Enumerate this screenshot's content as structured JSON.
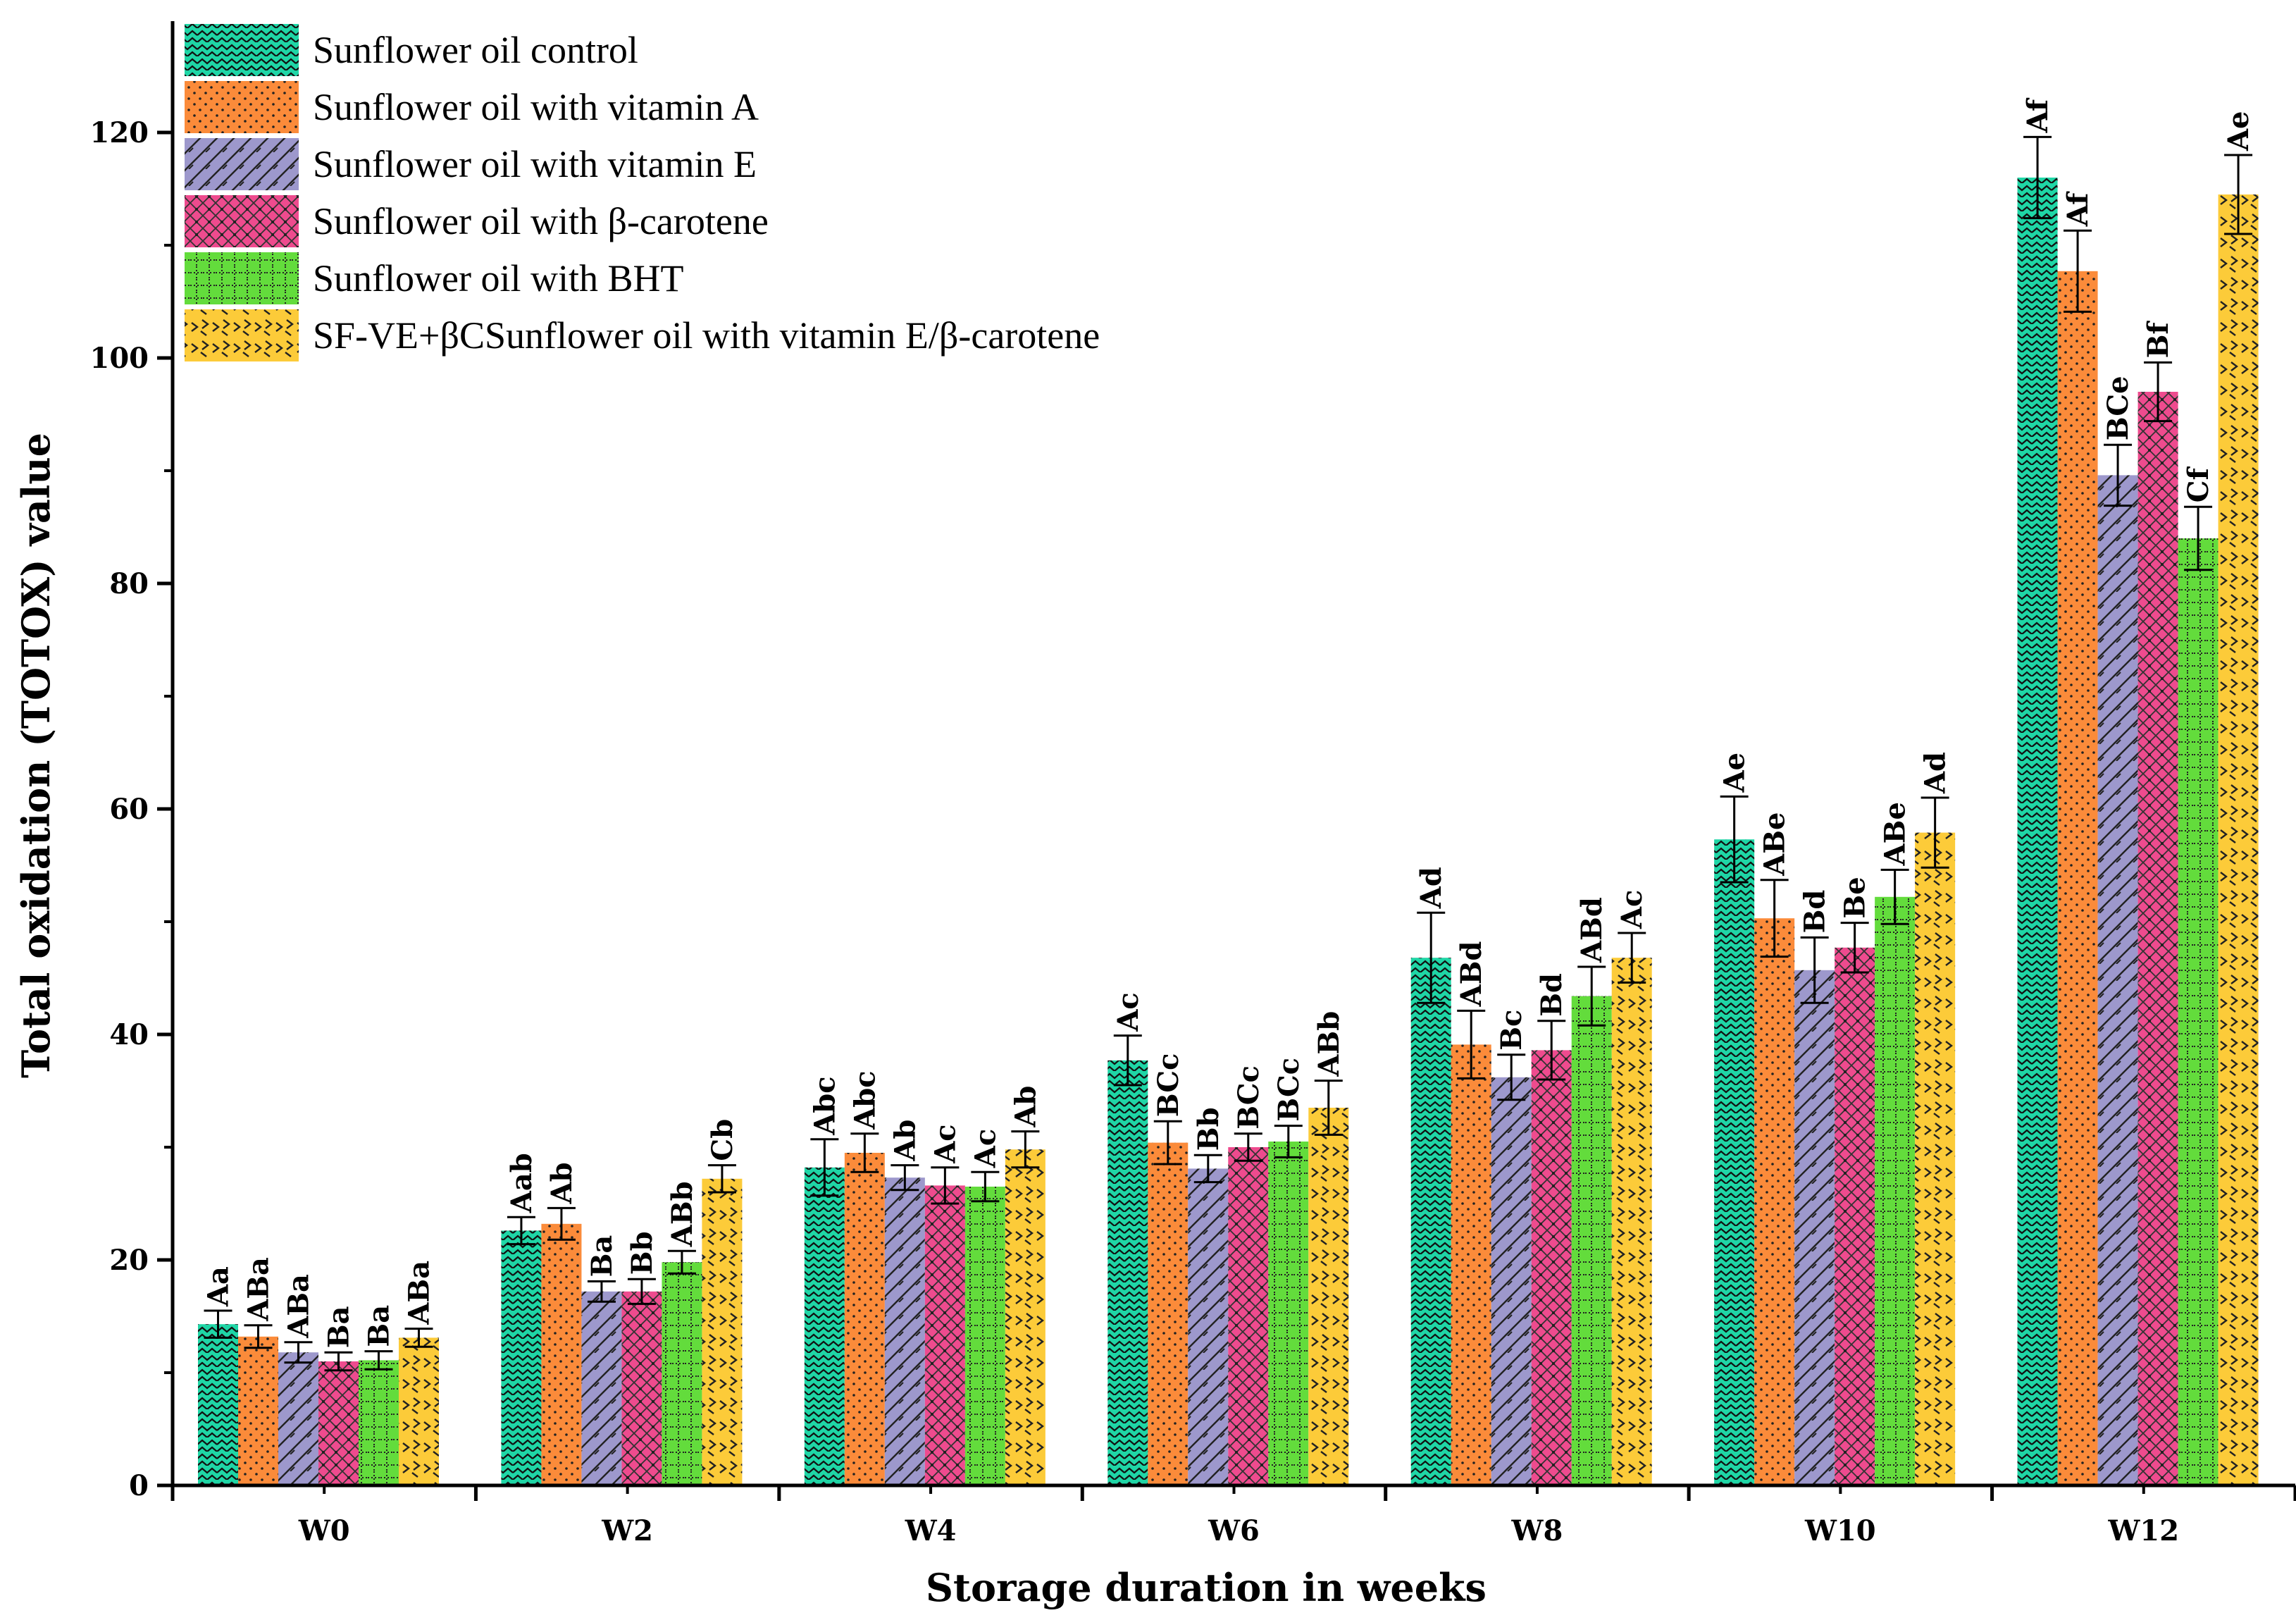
{
  "chart_data": {
    "type": "bar",
    "xlabel": "Storage duration in weeks",
    "ylabel": "Total oxidation (TOTOX) value",
    "ylim": [
      0,
      130
    ],
    "yticks": [
      0,
      20,
      40,
      60,
      80,
      100,
      120
    ],
    "categories": [
      "W0",
      "W2",
      "W4",
      "W6",
      "W8",
      "W10",
      "W12"
    ],
    "legend_position": "top-left",
    "grid": false,
    "series": [
      {
        "name": "Sunflower oil control",
        "color": "#1fd6a6",
        "pattern": "wave",
        "values": [
          14.3,
          22.6,
          28.2,
          37.7,
          46.8,
          57.3,
          116.0
        ],
        "errors": [
          1.2,
          1.2,
          2.5,
          2.2,
          4.0,
          3.8,
          3.6
        ],
        "labels": [
          "Aa",
          "Aab",
          "Abc",
          "Ac",
          "Ad",
          "Ae",
          "Af"
        ]
      },
      {
        "name": "Sunflower oil with vitamin A",
        "color": "#fb8b3a",
        "pattern": "dots",
        "values": [
          13.2,
          23.2,
          29.5,
          30.4,
          39.1,
          50.3,
          107.7
        ],
        "errors": [
          1.0,
          1.4,
          1.7,
          1.9,
          3.0,
          3.4,
          3.6
        ],
        "labels": [
          "ABa",
          "Ab",
          "Abc",
          "BCc",
          "ABd",
          "ABe",
          "Af"
        ]
      },
      {
        "name": "Sunflower oil with vitamin E",
        "color": "#9d98cc",
        "pattern": "hatch",
        "values": [
          11.8,
          17.2,
          27.3,
          28.1,
          36.2,
          45.7,
          89.6
        ],
        "errors": [
          0.9,
          0.9,
          1.1,
          1.2,
          2.0,
          2.9,
          2.7
        ],
        "labels": [
          "ABa",
          "Ba",
          "Ab",
          "Bb",
          "Bc",
          "Bd",
          "BCe"
        ]
      },
      {
        "name": "Sunflower oil with β-carotene",
        "color": "#ee4b8e",
        "pattern": "crosshatch",
        "values": [
          11.0,
          17.2,
          26.6,
          30.0,
          38.6,
          47.7,
          97.0
        ],
        "errors": [
          0.8,
          1.1,
          1.6,
          1.2,
          2.6,
          2.2,
          2.6
        ],
        "labels": [
          "Ba",
          "Bb",
          "Ac",
          "BCc",
          "Bd",
          "Be",
          "Bf"
        ]
      },
      {
        "name": "Sunflower oil with BHT",
        "color": "#63dc3c",
        "pattern": "grid",
        "values": [
          11.1,
          19.8,
          26.5,
          30.5,
          43.4,
          52.2,
          84.0
        ],
        "errors": [
          0.8,
          1.0,
          1.3,
          1.4,
          2.6,
          2.4,
          2.8
        ],
        "labels": [
          "Ba",
          "ABb",
          "Ac",
          "BCc",
          "ABd",
          "ABe",
          "Cf"
        ]
      },
      {
        "name": "SF-VE+βCSunflower oil with vitamin E/β-carotene",
        "color": "#fccb39",
        "pattern": "zigzag",
        "values": [
          13.1,
          27.2,
          29.8,
          33.5,
          46.8,
          57.9,
          114.5
        ],
        "errors": [
          0.8,
          1.2,
          1.6,
          2.4,
          2.2,
          3.1,
          3.5
        ],
        "labels": [
          "ABa",
          "Cb",
          "Ab",
          "ABb",
          "Ac",
          "Ad",
          "Ae"
        ]
      }
    ]
  }
}
